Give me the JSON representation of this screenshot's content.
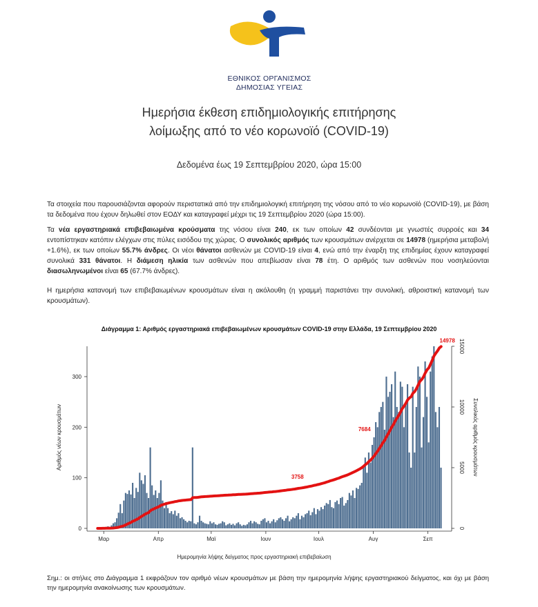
{
  "org": {
    "line1": "ΕΘΝΙΚΟΣ ΟΡΓΑΝΙΣΜΟΣ",
    "line2": "ΔΗΜΟΣΙΑΣ ΥΓΕΙΑΣ"
  },
  "colors": {
    "logo_yellow": "#f5c21b",
    "logo_blue": "#1f4fa0",
    "bar": "#4f6f91",
    "line": "#e31212"
  },
  "title": {
    "line1": "Ημερήσια έκθεση επιδημιολογικής επιτήρησης",
    "line2": "λοίμωξης από το νέο κορωνοϊό (COVID-19)"
  },
  "subtitle": "Δεδομένα έως 19 Σεπτεμβρίου 2020, ώρα 15:00",
  "paragraphs": {
    "p1": "Τα στοιχεία που παρουσιάζονται αφορούν περιστατικά από την επιδημιολογική επιτήρηση της νόσου από το νέο κορωνοϊό (COVID-19), με βάση τα δεδομένα που έχουν δηλωθεί στον ΕΟΔΥ και καταγραφεί μέχρι τις 19 Σεπτεμβρίου 2020 (ώρα 15:00).",
    "p2": [
      {
        "t": "Τα ",
        "b": false
      },
      {
        "t": "νέα εργαστηριακά επιβεβαιωμένα κρούσματα",
        "b": true
      },
      {
        "t": " της νόσου είναι ",
        "b": false
      },
      {
        "t": "240",
        "b": true
      },
      {
        "t": ", εκ των οποίων ",
        "b": false
      },
      {
        "t": "42",
        "b": true
      },
      {
        "t": " συνδέονται με γνωστές συρροές και ",
        "b": false
      },
      {
        "t": "34",
        "b": true
      },
      {
        "t": " εντοπίστηκαν κατόπιν ελέγχων στις πύλες εισόδου της χώρας.  Ο ",
        "b": false
      },
      {
        "t": "συνολικός αριθμός",
        "b": true
      },
      {
        "t": " των κρουσμάτων ανέρχεται σε ",
        "b": false
      },
      {
        "t": "14978",
        "b": true
      },
      {
        "t": " (ημερήσια μεταβολή +1.6%), εκ των οποίων ",
        "b": false
      },
      {
        "t": "55.7% άνδρες",
        "b": true
      },
      {
        "t": ". Οι νέοι ",
        "b": false
      },
      {
        "t": "θάνατοι",
        "b": true
      },
      {
        "t": " ασθενών με COVID-19 είναι ",
        "b": false
      },
      {
        "t": "4",
        "b": true
      },
      {
        "t": ", ενώ από την έναρξη της επιδημίας έχουν καταγραφεί συνολικά ",
        "b": false
      },
      {
        "t": "331 θάνατοι",
        "b": true
      },
      {
        "t": ".  Η ",
        "b": false
      },
      {
        "t": "διάμεση ηλικία",
        "b": true
      },
      {
        "t": " των ασθενών που απεβίωσαν είναι ",
        "b": false
      },
      {
        "t": "78",
        "b": true
      },
      {
        "t": " έτη.  Ο αριθμός των ασθενών που νοσηλεύονται ",
        "b": false
      },
      {
        "t": "διασωληνωμένοι",
        "b": true
      },
      {
        "t": " είναι ",
        "b": false
      },
      {
        "t": "65",
        "b": true
      },
      {
        "t": " (67.7% άνδρες).",
        "b": false
      }
    ],
    "p3": "Η ημερήσια κατανομή των επιβεβαιωμένων κρουσμάτων είναι η ακόλουθη (η γραμμή παριστάνει την συνολική, αθροιστική κατανομή των κρουσμάτων)."
  },
  "chart_data": {
    "type": "bar",
    "title": "Διάγραμμα 1: Αριθμός εργαστηριακά επιβεβαιωμένων κρουσμάτων COVID-19 στην Ελλάδα, 19 Σεπτεμβρίου 2020",
    "xlabel": "Ημερομηνία λήψης δείγματος προς εργαστηριακή επιβεβαίωση",
    "ylabel": "Αριθμός νέων κρουσμάτων",
    "y2label": "Συνολικός αριθμός κρουσμάτων",
    "ylim": [
      0,
      360
    ],
    "y2lim": [
      0,
      15000
    ],
    "yticks": [
      0,
      100,
      200,
      300
    ],
    "y2ticks": [
      0,
      5000,
      10000,
      15000
    ],
    "month_labels": [
      "Μαρ",
      "Απρ",
      "Μαϊ",
      "Ιουν",
      "Ιουλ",
      "Αυγ",
      "Σεπ"
    ],
    "month_start_index": [
      4,
      35,
      65,
      96,
      126,
      157,
      188
    ],
    "daily_values": [
      1,
      0,
      1,
      2,
      2,
      3,
      4,
      3,
      6,
      10,
      12,
      20,
      31,
      48,
      30,
      55,
      70,
      68,
      75,
      67,
      90,
      60,
      80,
      72,
      110,
      95,
      88,
      105,
      70,
      60,
      160,
      85,
      66,
      75,
      60,
      70,
      95,
      55,
      40,
      52,
      40,
      30,
      34,
      28,
      35,
      25,
      30,
      20,
      22,
      18,
      15,
      12,
      15,
      14,
      160,
      10,
      8,
      12,
      25,
      15,
      12,
      10,
      9,
      8,
      14,
      10,
      12,
      8,
      7,
      9,
      10,
      14,
      12,
      6,
      8,
      10,
      7,
      9,
      6,
      10,
      12,
      8,
      5,
      7,
      6,
      8,
      12,
      15,
      10,
      14,
      12,
      9,
      8,
      15,
      18,
      20,
      12,
      15,
      10,
      14,
      18,
      12,
      16,
      20,
      22,
      18,
      15,
      20,
      25,
      14,
      18,
      22,
      20,
      25,
      30,
      18,
      25,
      22,
      28,
      30,
      35,
      26,
      32,
      40,
      28,
      38,
      35,
      42,
      38,
      45,
      50,
      48,
      56,
      42,
      40,
      52,
      55,
      48,
      60,
      62,
      45,
      50,
      56,
      70,
      65,
      75,
      60,
      80,
      78,
      85,
      90,
      120,
      140,
      110,
      150,
      130,
      165,
      180,
      210,
      200,
      230,
      240,
      250,
      195,
      300,
      260,
      270,
      285,
      220,
      310,
      240,
      230,
      290,
      280,
      200,
      250,
      285,
      150,
      120,
      280,
      150,
      240,
      320,
      300,
      160,
      220,
      330,
      260,
      170,
      310,
      340,
      360,
      230,
      200,
      240,
      120
    ],
    "cumulative_labels": [
      {
        "text": "3758",
        "index": 114,
        "value": 3758
      },
      {
        "text": "7684",
        "index": 152,
        "value": 7684
      },
      {
        "text": "14978",
        "index": 199,
        "value": 14978
      }
    ]
  },
  "footnote": "Σημ.: οι στήλες στο Διάγραμμα 1 εκφράζουν τον αριθμό νέων κρουσμάτων με βάση την ημερομηνία λήψης εργαστηριακού δείγματος, και όχι με βάση την ημερομηνία ανακοίνωσης των κρουσμάτων."
}
